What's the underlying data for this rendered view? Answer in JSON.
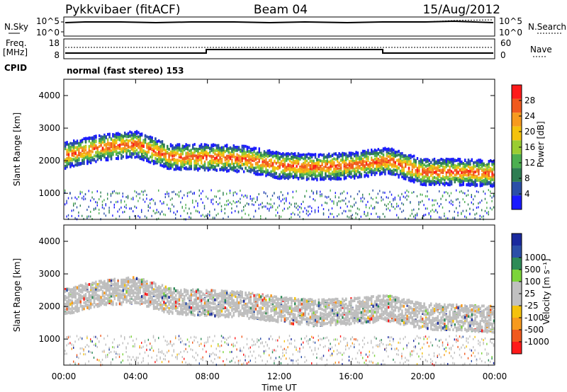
{
  "header": {
    "radar": "Pykkvibaer (fitACF)",
    "beam": "Beam 04",
    "date": "15/Aug/2012"
  },
  "top_panels": {
    "nsky_label": "N.Sky",
    "nsky_ticks": [
      "10^5",
      "10^0"
    ],
    "nsearch_label": "N.Search",
    "nsearch_ticks": [
      "10^5",
      "10^0"
    ],
    "freq_label": "Freq.",
    "freq_unit": "[MHz]",
    "freq_ticks": [
      "18",
      "8"
    ],
    "nave_label": "Nave",
    "nave_ticks": [
      "60",
      "0"
    ],
    "cpid_label": "CPID",
    "cpid_text": "normal (fast stereo) 153"
  },
  "colors": {
    "power_scale": [
      "#1a1aff",
      "#2b4fa8",
      "#2e7d52",
      "#4caf50",
      "#9acd32",
      "#f4c20d",
      "#f79a1e",
      "#f05a1e",
      "#ff1a1a"
    ],
    "velocity_scale": [
      "#ff1a1a",
      "#f05a1e",
      "#f79a1e",
      "#f4c20d",
      "#c0c0c0",
      "#c0c0c0",
      "#7cd43a",
      "#2e8b57",
      "#2b4fa8",
      "#1a2a9e"
    ],
    "ground_scatter": "#bebebe"
  },
  "chart_data": [
    {
      "type": "heatmap",
      "title": "",
      "xlabel": "",
      "ylabel": "Slant Range [km]",
      "yticks": [
        "1000",
        "2000",
        "3000",
        "4000"
      ],
      "ylim": [
        200,
        4500
      ],
      "colorbar": {
        "label": "Power [dB]",
        "ticks": [
          "4",
          "8",
          "12",
          "16",
          "20",
          "24",
          "28"
        ],
        "range": [
          0,
          32
        ]
      },
      "bands": [
        {
          "x": [
            0,
            2,
            4,
            6,
            8,
            10,
            12,
            14,
            16,
            18,
            20,
            22,
            24
          ],
          "y": [
            2150,
            2400,
            2500,
            2100,
            2100,
            2050,
            1850,
            1800,
            1850,
            2000,
            1650,
            1650,
            1600
          ]
        }
      ]
    },
    {
      "type": "heatmap",
      "title": "",
      "xlabel": "Time UT",
      "ylabel": "Slant Range [km]",
      "yticks": [
        "1000",
        "2000",
        "3000",
        "4000"
      ],
      "ylim": [
        200,
        4500
      ],
      "xticks": [
        "00:00",
        "04:00",
        "08:00",
        "12:00",
        "16:00",
        "20:00",
        "00:00"
      ],
      "xlim": [
        0,
        24
      ],
      "colorbar": {
        "label": "Velocity [m s⁻¹]",
        "ticks": [
          "-1000",
          "-500",
          "-100",
          "-25",
          "25",
          "100",
          "500",
          "1000"
        ]
      },
      "bands": [
        {
          "x": [
            0,
            2,
            4,
            6,
            8,
            10,
            12,
            14,
            16,
            18,
            20,
            22,
            24
          ],
          "y": [
            2150,
            2400,
            2500,
            2150,
            2100,
            2050,
            1900,
            1800,
            1850,
            1950,
            1700,
            1650,
            1600
          ]
        }
      ]
    }
  ]
}
